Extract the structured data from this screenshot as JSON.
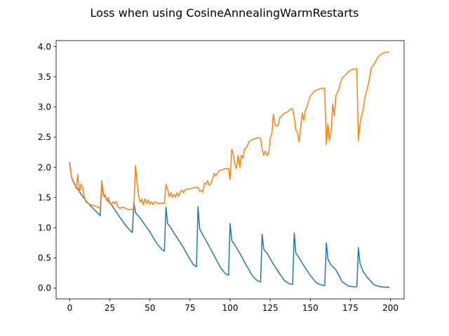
{
  "chart_data": {
    "type": "line",
    "title": "Loss when using CosineAnnealingWarmRestarts",
    "xlabel": "",
    "ylabel": "",
    "xlim": [
      -8.5,
      208.5
    ],
    "ylim": [
      -0.18,
      4.1
    ],
    "xticks": [
      0,
      25,
      50,
      75,
      100,
      125,
      150,
      175,
      200
    ],
    "xtick_labels": [
      "0",
      "25",
      "50",
      "75",
      "100",
      "125",
      "150",
      "175",
      "200"
    ],
    "yticks": [
      0.0,
      0.5,
      1.0,
      1.5,
      2.0,
      2.5,
      3.0,
      3.5,
      4.0
    ],
    "ytick_labels": [
      "0.0",
      "0.5",
      "1.0",
      "1.5",
      "2.0",
      "2.5",
      "3.0",
      "3.5",
      "4.0"
    ],
    "grid": false,
    "legend": "none",
    "series": [
      {
        "color": "#1f77b4",
        "points": [
          [
            0,
            2.08
          ],
          [
            1,
            1.85
          ],
          [
            2,
            1.78
          ],
          [
            3,
            1.72
          ],
          [
            5,
            1.64
          ],
          [
            7,
            1.56
          ],
          [
            10,
            1.45
          ],
          [
            13,
            1.36
          ],
          [
            16,
            1.28
          ],
          [
            18,
            1.23
          ],
          [
            19,
            1.2
          ],
          [
            20,
            1.77
          ],
          [
            21,
            1.55
          ],
          [
            23,
            1.47
          ],
          [
            26,
            1.38
          ],
          [
            30,
            1.22
          ],
          [
            34,
            1.07
          ],
          [
            37,
            0.97
          ],
          [
            39,
            0.92
          ],
          [
            40,
            1.42
          ],
          [
            41,
            1.25
          ],
          [
            43,
            1.19
          ],
          [
            46,
            1.08
          ],
          [
            50,
            0.93
          ],
          [
            54,
            0.75
          ],
          [
            57,
            0.65
          ],
          [
            59,
            0.61
          ],
          [
            60,
            1.34
          ],
          [
            61,
            1.07
          ],
          [
            63,
            1.0
          ],
          [
            66,
            0.87
          ],
          [
            70,
            0.71
          ],
          [
            74,
            0.52
          ],
          [
            77,
            0.39
          ],
          [
            79,
            0.35
          ],
          [
            80,
            1.35
          ],
          [
            81,
            0.98
          ],
          [
            83,
            0.88
          ],
          [
            86,
            0.74
          ],
          [
            90,
            0.54
          ],
          [
            94,
            0.34
          ],
          [
            97,
            0.24
          ],
          [
            99,
            0.21
          ],
          [
            100,
            1.07
          ],
          [
            101,
            0.79
          ],
          [
            103,
            0.71
          ],
          [
            106,
            0.58
          ],
          [
            110,
            0.38
          ],
          [
            114,
            0.2
          ],
          [
            117,
            0.12
          ],
          [
            119,
            0.1
          ],
          [
            120,
            0.89
          ],
          [
            121,
            0.64
          ],
          [
            123,
            0.58
          ],
          [
            126,
            0.44
          ],
          [
            130,
            0.27
          ],
          [
            134,
            0.12
          ],
          [
            137,
            0.07
          ],
          [
            139,
            0.06
          ],
          [
            140,
            0.91
          ],
          [
            141,
            0.58
          ],
          [
            143,
            0.5
          ],
          [
            146,
            0.37
          ],
          [
            150,
            0.21
          ],
          [
            154,
            0.08
          ],
          [
            157,
            0.05
          ],
          [
            159,
            0.04
          ],
          [
            160,
            0.75
          ],
          [
            161,
            0.48
          ],
          [
            163,
            0.38
          ],
          [
            166,
            0.3
          ],
          [
            170,
            0.1
          ],
          [
            174,
            0.03
          ],
          [
            177,
            0.02
          ],
          [
            179,
            0.02
          ],
          [
            180,
            0.67
          ],
          [
            181,
            0.41
          ],
          [
            183,
            0.27
          ],
          [
            186,
            0.16
          ],
          [
            190,
            0.05
          ],
          [
            194,
            0.02
          ],
          [
            197,
            0.015
          ],
          [
            199,
            0.015
          ]
        ]
      },
      {
        "color": "#ff7f0e",
        "points": [
          [
            0,
            2.05
          ],
          [
            1,
            1.85
          ],
          [
            2,
            1.76
          ],
          [
            3,
            1.74
          ],
          [
            4,
            1.65
          ],
          [
            5,
            1.88
          ],
          [
            6,
            1.58
          ],
          [
            7,
            1.72
          ],
          [
            8,
            1.68
          ],
          [
            9,
            1.52
          ],
          [
            10,
            1.43
          ],
          [
            12,
            1.39
          ],
          [
            14,
            1.37
          ],
          [
            16,
            1.36
          ],
          [
            18,
            1.33
          ],
          [
            19,
            1.33
          ],
          [
            20,
            1.75
          ],
          [
            21,
            1.52
          ],
          [
            22,
            1.55
          ],
          [
            23,
            1.45
          ],
          [
            24,
            1.5
          ],
          [
            25,
            1.42
          ],
          [
            26,
            1.38
          ],
          [
            27,
            1.43
          ],
          [
            28,
            1.4
          ],
          [
            29,
            1.43
          ],
          [
            30,
            1.35
          ],
          [
            31,
            1.32
          ],
          [
            33,
            1.34
          ],
          [
            35,
            1.32
          ],
          [
            36,
            1.3
          ],
          [
            38,
            1.3
          ],
          [
            39,
            1.3
          ],
          [
            40,
            1.32
          ],
          [
            41,
            2.03
          ],
          [
            42,
            1.75
          ],
          [
            43,
            1.53
          ],
          [
            44,
            1.42
          ],
          [
            45,
            1.47
          ],
          [
            46,
            1.38
          ],
          [
            47,
            1.48
          ],
          [
            48,
            1.4
          ],
          [
            49,
            1.46
          ],
          [
            50,
            1.39
          ],
          [
            51,
            1.43
          ],
          [
            52,
            1.38
          ],
          [
            53,
            1.43
          ],
          [
            55,
            1.4
          ],
          [
            57,
            1.41
          ],
          [
            59,
            1.4
          ],
          [
            60,
            1.72
          ],
          [
            61,
            1.64
          ],
          [
            62,
            1.52
          ],
          [
            63,
            1.58
          ],
          [
            64,
            1.5
          ],
          [
            65,
            1.55
          ],
          [
            66,
            1.51
          ],
          [
            67,
            1.58
          ],
          [
            68,
            1.52
          ],
          [
            69,
            1.6
          ],
          [
            70,
            1.62
          ],
          [
            71,
            1.58
          ],
          [
            72,
            1.63
          ],
          [
            74,
            1.64
          ],
          [
            76,
            1.65
          ],
          [
            78,
            1.67
          ],
          [
            79,
            1.66
          ],
          [
            80,
            1.67
          ],
          [
            81,
            1.6
          ],
          [
            82,
            1.62
          ],
          [
            83,
            1.59
          ],
          [
            84,
            1.74
          ],
          [
            85,
            1.72
          ],
          [
            86,
            1.78
          ],
          [
            87,
            1.7
          ],
          [
            88,
            1.72
          ],
          [
            89,
            1.8
          ],
          [
            90,
            1.9
          ],
          [
            91,
            1.86
          ],
          [
            93,
            1.94
          ],
          [
            95,
            1.96
          ],
          [
            97,
            1.98
          ],
          [
            99,
            1.98
          ],
          [
            100,
            1.8
          ],
          [
            101,
            2.3
          ],
          [
            102,
            2.22
          ],
          [
            103,
            2.05
          ],
          [
            104,
            1.98
          ],
          [
            105,
            2.2
          ],
          [
            106,
            2.0
          ],
          [
            107,
            2.2
          ],
          [
            108,
            2.15
          ],
          [
            109,
            2.3
          ],
          [
            110,
            2.32
          ],
          [
            112,
            2.43
          ],
          [
            114,
            2.46
          ],
          [
            116,
            2.48
          ],
          [
            118,
            2.49
          ],
          [
            119,
            2.48
          ],
          [
            120,
            2.3
          ],
          [
            121,
            2.2
          ],
          [
            122,
            2.27
          ],
          [
            123,
            2.2
          ],
          [
            124,
            2.22
          ],
          [
            125,
            2.48
          ],
          [
            126,
            2.55
          ],
          [
            127,
            2.88
          ],
          [
            128,
            2.71
          ],
          [
            129,
            2.68
          ],
          [
            130,
            2.7
          ],
          [
            131,
            2.82
          ],
          [
            132,
            2.85
          ],
          [
            134,
            2.9
          ],
          [
            136,
            2.92
          ],
          [
            138,
            2.97
          ],
          [
            139,
            2.97
          ],
          [
            140,
            2.82
          ],
          [
            141,
            2.62
          ],
          [
            142,
            2.58
          ],
          [
            143,
            2.42
          ],
          [
            144,
            2.65
          ],
          [
            145,
            2.9
          ],
          [
            146,
            2.78
          ],
          [
            147,
            2.95
          ],
          [
            148,
            3.0
          ],
          [
            149,
            3.1
          ],
          [
            150,
            3.18
          ],
          [
            152,
            3.25
          ],
          [
            154,
            3.28
          ],
          [
            156,
            3.3
          ],
          [
            158,
            3.31
          ],
          [
            159,
            3.31
          ],
          [
            160,
            2.38
          ],
          [
            161,
            2.72
          ],
          [
            162,
            2.45
          ],
          [
            163,
            2.6
          ],
          [
            164,
            3.05
          ],
          [
            165,
            2.85
          ],
          [
            166,
            3.18
          ],
          [
            167,
            3.25
          ],
          [
            168,
            3.3
          ],
          [
            169,
            3.42
          ],
          [
            170,
            3.48
          ],
          [
            172,
            3.53
          ],
          [
            174,
            3.59
          ],
          [
            176,
            3.62
          ],
          [
            178,
            3.63
          ],
          [
            179,
            3.63
          ],
          [
            180,
            2.44
          ],
          [
            181,
            2.72
          ],
          [
            182,
            2.86
          ],
          [
            183,
            2.96
          ],
          [
            184,
            3.15
          ],
          [
            185,
            3.25
          ],
          [
            186,
            3.35
          ],
          [
            187,
            3.48
          ],
          [
            188,
            3.65
          ],
          [
            189,
            3.68
          ],
          [
            190,
            3.72
          ],
          [
            192,
            3.82
          ],
          [
            194,
            3.87
          ],
          [
            196,
            3.9
          ],
          [
            198,
            3.91
          ],
          [
            199,
            3.91
          ]
        ]
      }
    ]
  }
}
